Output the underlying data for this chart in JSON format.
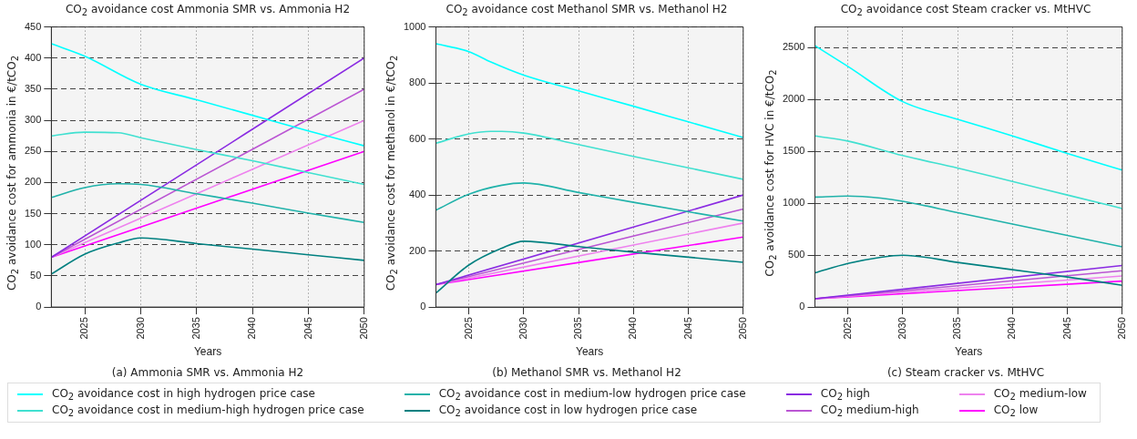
{
  "chart_data": [
    {
      "type": "line",
      "title": "CO$_{2}$ avoidance cost Ammonia SMR vs. Ammonia H2",
      "xlabel": "Years",
      "ylabel": "CO$_{2}$ avoidance cost for ammonia in €/tCO$_{2}$",
      "annotations": [
        "(a) Ammonia SMR vs. Ammonia H2"
      ],
      "xlim": [
        2022,
        2050
      ],
      "xticks": [
        2025,
        2030,
        2035,
        2040,
        2045,
        2050
      ],
      "ylim": [
        0,
        450
      ],
      "yticks": [
        0,
        50,
        100,
        150,
        200,
        250,
        300,
        350,
        400,
        450
      ],
      "grid": true,
      "legend": "bottom",
      "marker": "none",
      "line_style": "solid",
      "series": [
        {
          "name": "CO$_{2}$ avoidance cost in high hydrogen price case",
          "color": "#00ffff",
          "x": [
            2022,
            2025,
            2030,
            2035,
            2040,
            2045,
            2050
          ],
          "values": [
            423,
            403,
            358,
            333,
            308,
            283,
            259
          ]
        },
        {
          "name": "CO$_{2}$ avoidance cost in medium-high hydrogen price case",
          "color": "#40e0d0",
          "x": [
            2022,
            2025,
            2028,
            2030,
            2035,
            2040,
            2045,
            2050
          ],
          "values": [
            275,
            281,
            280,
            272,
            253,
            235,
            216,
            197
          ]
        },
        {
          "name": "CO$_{2}$ avoidance cost in medium-low hydrogen price case",
          "color": "#20b2aa",
          "x": [
            2022,
            2025,
            2028,
            2030,
            2035,
            2040,
            2045,
            2050
          ],
          "values": [
            176,
            192,
            198,
            197,
            182,
            167,
            151,
            136
          ]
        },
        {
          "name": "CO$_{2}$ avoidance cost in low hydrogen price case",
          "color": "#008080",
          "x": [
            2022,
            2025,
            2028,
            2030,
            2035,
            2040,
            2045,
            2050
          ],
          "values": [
            53,
            85,
            103,
            111,
            102,
            93,
            84,
            75
          ]
        },
        {
          "name": "CO$_{2}$ high",
          "color": "#8a2be2",
          "x": [
            2022,
            2050
          ],
          "values": [
            80,
            400
          ]
        },
        {
          "name": "CO$_{2}$ medium-high",
          "color": "#ba55d3",
          "x": [
            2022,
            2050
          ],
          "values": [
            80,
            350
          ]
        },
        {
          "name": "CO$_{2}$ medium-low",
          "color": "#ee82ee",
          "x": [
            2022,
            2050
          ],
          "values": [
            80,
            300
          ]
        },
        {
          "name": "CO$_{2}$ low",
          "color": "#ff00ff",
          "x": [
            2022,
            2050
          ],
          "values": [
            80,
            250
          ]
        }
      ]
    },
    {
      "type": "line",
      "title": "CO$_{2}$ avoidance cost Methanol SMR vs. Methanol H2",
      "xlabel": "Years",
      "ylabel": "CO$_{2}$ avoidance cost for methanol in €/tCO$_{2}$",
      "annotations": [
        "(b) Methanol SMR vs. Methanol H2"
      ],
      "xlim": [
        2022,
        2050
      ],
      "xticks": [
        2025,
        2030,
        2035,
        2040,
        2045,
        2050
      ],
      "ylim": [
        0,
        1000
      ],
      "yticks": [
        0,
        200,
        400,
        600,
        800,
        1000
      ],
      "grid": true,
      "marker": "none",
      "line_style": "solid",
      "series": [
        {
          "color": "#00ffff",
          "x": [
            2022,
            2025,
            2027,
            2030,
            2035,
            2040,
            2045,
            2050
          ],
          "values": [
            940,
            912,
            875,
            828,
            772,
            717,
            661,
            605
          ]
        },
        {
          "color": "#40e0d0",
          "x": [
            2022,
            2025,
            2027,
            2028,
            2030,
            2035,
            2040,
            2045,
            2050
          ],
          "values": [
            585,
            618,
            627,
            627,
            621,
            580,
            538,
            497,
            456
          ]
        },
        {
          "color": "#20b2aa",
          "x": [
            2022,
            2025,
            2028,
            2030,
            2035,
            2040,
            2045,
            2050
          ],
          "values": [
            346,
            403,
            435,
            443,
            409,
            374,
            340,
            307
          ]
        },
        {
          "color": "#008080",
          "x": [
            2022,
            2025,
            2028,
            2030,
            2035,
            2040,
            2045,
            2050
          ],
          "values": [
            50,
            150,
            210,
            235,
            216,
            196,
            178,
            160
          ]
        },
        {
          "color": "#8a2be2",
          "x": [
            2022,
            2050
          ],
          "values": [
            80,
            400
          ]
        },
        {
          "color": "#ba55d3",
          "x": [
            2022,
            2050
          ],
          "values": [
            80,
            350
          ]
        },
        {
          "color": "#ee82ee",
          "x": [
            2022,
            2050
          ],
          "values": [
            80,
            300
          ]
        },
        {
          "color": "#ff00ff",
          "x": [
            2022,
            2050
          ],
          "values": [
            80,
            250
          ]
        }
      ]
    },
    {
      "type": "line",
      "title": "CO$_{2}$ avoidance cost Steam cracker vs. MtHVC",
      "xlabel": "Years",
      "ylabel": "CO$_{2}$ avoidance cost for HVC in €/tCO$_{2}$",
      "annotations": [
        "(c) Steam cracker vs. MtHVC"
      ],
      "xlim": [
        2022,
        2050
      ],
      "xticks": [
        2025,
        2030,
        2035,
        2040,
        2045,
        2050
      ],
      "ylim": [
        0,
        2700
      ],
      "yticks": [
        0,
        500,
        1000,
        1500,
        2000,
        2500
      ],
      "grid": true,
      "marker": "none",
      "line_style": "solid",
      "series": [
        {
          "color": "#00ffff",
          "x": [
            2022,
            2025,
            2030,
            2035,
            2040,
            2045,
            2050
          ],
          "values": [
            2520,
            2320,
            1980,
            1810,
            1650,
            1480,
            1320
          ]
        },
        {
          "color": "#40e0d0",
          "x": [
            2022,
            2025,
            2030,
            2035,
            2040,
            2045,
            2050
          ],
          "values": [
            1650,
            1600,
            1460,
            1340,
            1210,
            1080,
            950
          ]
        },
        {
          "color": "#20b2aa",
          "x": [
            2022,
            2025,
            2028,
            2030,
            2035,
            2040,
            2045,
            2050
          ],
          "values": [
            1060,
            1070,
            1050,
            1020,
            910,
            800,
            690,
            580
          ]
        },
        {
          "color": "#008080",
          "x": [
            2022,
            2025,
            2028,
            2030,
            2035,
            2040,
            2045,
            2050
          ],
          "values": [
            330,
            420,
            480,
            500,
            430,
            360,
            290,
            210
          ]
        },
        {
          "color": "#8a2be2",
          "x": [
            2022,
            2050
          ],
          "values": [
            80,
            400
          ]
        },
        {
          "color": "#ba55d3",
          "x": [
            2022,
            2050
          ],
          "values": [
            80,
            350
          ]
        },
        {
          "color": "#ee82ee",
          "x": [
            2022,
            2050
          ],
          "values": [
            80,
            300
          ]
        },
        {
          "color": "#ff00ff",
          "x": [
            2022,
            2050
          ],
          "values": [
            80,
            250
          ]
        }
      ]
    }
  ]
}
